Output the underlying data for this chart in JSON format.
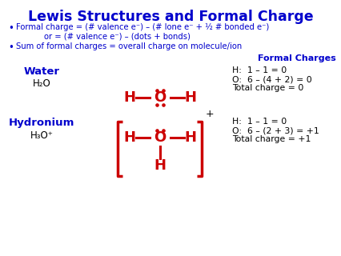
{
  "title": "Lewis Structures and Formal Charge",
  "blue_color": "#0000CC",
  "red_color": "#CC0000",
  "black_color": "#000000",
  "bg_color": "#FFFFFF",
  "bullet1_line1": "Formal charge = (# valence e⁻) – (# lone e⁻ + ½ # bonded e⁻)",
  "bullet1_line2": "or = (# valence e⁻) – (dots + bonds)",
  "bullet2": "Sum of formal charges = overall charge on molecule/ion",
  "formal_charges_label": "Formal Charges",
  "water_label": "Water",
  "water_formula": "H₂O",
  "hydronium_label": "Hydronium",
  "hydronium_formula": "H₃O⁺",
  "water_charges_line1": "H:  1 – 1 = 0",
  "water_charges_line2": "O:  6 – (4 + 2) = 0",
  "water_charges_line3": "Total charge = 0",
  "hydronium_charges_line1": "H:  1 – 1 = 0",
  "hydronium_charges_line2": "O:  6 – (2 + 3) = +1",
  "hydronium_charges_line3": "Total charge = +1"
}
